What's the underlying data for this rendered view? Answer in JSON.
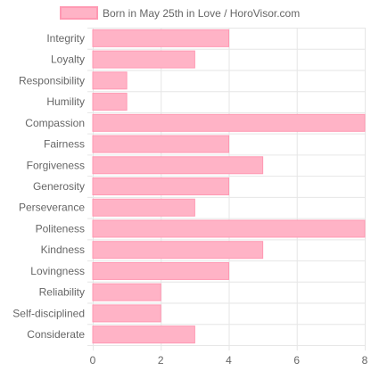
{
  "chart_data": {
    "type": "bar",
    "orientation": "horizontal",
    "categories": [
      "Integrity",
      "Loyalty",
      "Responsibility",
      "Humility",
      "Compassion",
      "Fairness",
      "Forgiveness",
      "Generosity",
      "Perseverance",
      "Politeness",
      "Kindness",
      "Lovingness",
      "Reliability",
      "Self-disciplined",
      "Considerate"
    ],
    "series": [
      {
        "name": "Born in May 25th in Love / HoroVisor.com",
        "values": [
          4,
          3,
          1,
          1,
          8,
          4,
          5,
          4,
          3,
          8,
          5,
          4,
          2,
          2,
          3
        ]
      }
    ],
    "xlim": [
      0,
      8
    ],
    "xticks": [
      0,
      2,
      4,
      6,
      8
    ],
    "grid": true,
    "legend_position": "top",
    "colors": {
      "bar_fill": "#ffb3c6",
      "bar_stroke": "#ff99b3",
      "grid": "#e6e6e6",
      "text": "#666666"
    }
  }
}
